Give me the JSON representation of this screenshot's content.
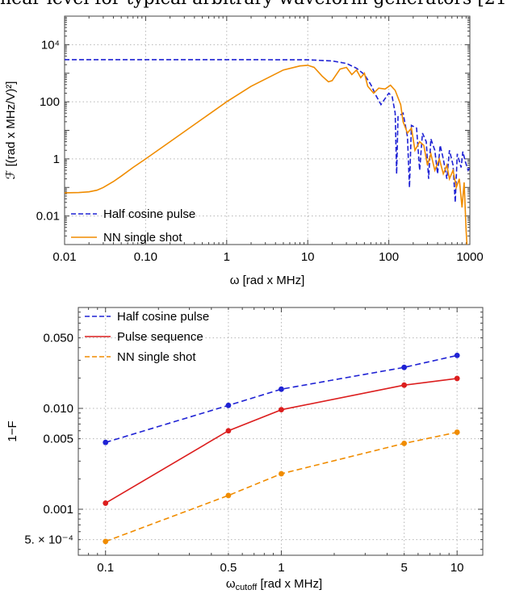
{
  "page": {
    "top_caption": "near level for typical arbitrary waveform generators [21"
  },
  "chart_data": [
    {
      "type": "line",
      "xscale": "log",
      "yscale": "log",
      "xlim": [
        0.01,
        1000
      ],
      "ylim": [
        0.001,
        100000
      ],
      "grid": true,
      "legend_position": "bottom-left",
      "xlabel": "ω [rad x MHz]",
      "ylabel": "ℱ [(rad x MHz/V)²]",
      "x_ticks": [
        {
          "value": 0.01,
          "label": "0.01"
        },
        {
          "value": 0.1,
          "label": "0.10"
        },
        {
          "value": 1,
          "label": "1"
        },
        {
          "value": 10,
          "label": "10"
        },
        {
          "value": 100,
          "label": "100"
        },
        {
          "value": 1000,
          "label": "1000"
        }
      ],
      "y_ticks": [
        {
          "value": 0.01,
          "label": "0.01"
        },
        {
          "value": 1,
          "label": "1"
        },
        {
          "value": 100,
          "label": "100"
        },
        {
          "value": 10000,
          "label": "10⁴"
        }
      ],
      "series": [
        {
          "name": "Half cosine pulse",
          "color": "#1f22d4",
          "dash": "dashed",
          "points": [
            [
              0.01,
              3000
            ],
            [
              1,
              3000
            ],
            [
              10,
              2950
            ],
            [
              20,
              2700
            ],
            [
              30,
              2200
            ],
            [
              40,
              1500
            ],
            [
              50,
              900
            ],
            [
              60,
              400
            ],
            [
              70,
              160
            ],
            [
              80,
              80
            ],
            [
              90,
              130
            ],
            [
              100,
              200
            ],
            [
              110,
              150
            ],
            [
              120,
              40
            ],
            [
              125,
              0.3
            ],
            [
              130,
              30
            ],
            [
              150,
              40
            ],
            [
              170,
              6
            ],
            [
              180,
              0.1
            ],
            [
              190,
              15
            ],
            [
              220,
              12
            ],
            [
              240,
              0.4
            ],
            [
              260,
              8
            ],
            [
              290,
              4
            ],
            [
              310,
              0.2
            ],
            [
              330,
              5
            ],
            [
              370,
              2
            ],
            [
              400,
              0.3
            ],
            [
              430,
              3
            ],
            [
              470,
              1
            ],
            [
              520,
              0.2
            ],
            [
              560,
              2
            ],
            [
              620,
              0.6
            ],
            [
              660,
              0.03
            ],
            [
              700,
              1.5
            ],
            [
              780,
              0.5
            ],
            [
              820,
              1.8
            ],
            [
              880,
              0.8
            ],
            [
              950,
              0.4
            ],
            [
              1000,
              0.5
            ]
          ]
        },
        {
          "name": "NN single shot",
          "color": "#f08c00",
          "dash": "solid",
          "points": [
            [
              0.01,
              0.065
            ],
            [
              0.015,
              0.066
            ],
            [
              0.02,
              0.07
            ],
            [
              0.025,
              0.08
            ],
            [
              0.03,
              0.1
            ],
            [
              0.04,
              0.16
            ],
            [
              0.05,
              0.25
            ],
            [
              0.07,
              0.5
            ],
            [
              0.1,
              1
            ],
            [
              0.2,
              4
            ],
            [
              0.5,
              25
            ],
            [
              1,
              100
            ],
            [
              2,
              350
            ],
            [
              5,
              1300
            ],
            [
              8,
              1800
            ],
            [
              10,
              1900
            ],
            [
              12,
              1600
            ],
            [
              15,
              800
            ],
            [
              18,
              500
            ],
            [
              20,
              550
            ],
            [
              25,
              1400
            ],
            [
              30,
              1600
            ],
            [
              35,
              900
            ],
            [
              40,
              1300
            ],
            [
              45,
              700
            ],
            [
              50,
              1000
            ],
            [
              55,
              350
            ],
            [
              65,
              200
            ],
            [
              75,
              300
            ],
            [
              90,
              280
            ],
            [
              105,
              380
            ],
            [
              120,
              250
            ],
            [
              140,
              80
            ],
            [
              150,
              20
            ],
            [
              170,
              8
            ],
            [
              190,
              12
            ],
            [
              210,
              2
            ],
            [
              240,
              4
            ],
            [
              270,
              3
            ],
            [
              300,
              0.6
            ],
            [
              330,
              1.5
            ],
            [
              370,
              0.4
            ],
            [
              420,
              1
            ],
            [
              470,
              0.3
            ],
            [
              520,
              0.6
            ],
            [
              560,
              0.2
            ],
            [
              620,
              0.4
            ],
            [
              680,
              0.1
            ],
            [
              740,
              0.2
            ],
            [
              800,
              0.02
            ],
            [
              850,
              0.15
            ],
            [
              900,
              0.003
            ],
            [
              920,
              0.001
            ]
          ]
        }
      ]
    },
    {
      "type": "line",
      "xscale": "log",
      "yscale": "log",
      "xlim": [
        0.07,
        14
      ],
      "ylim": [
        0.00035,
        0.1
      ],
      "grid": true,
      "legend_position": "top-left",
      "xlabel": "ω",
      "xlabel_sub": "cutoff",
      "xlabel_rest": " [rad x MHz]",
      "ylabel": "1−F",
      "x_ticks": [
        {
          "value": 0.1,
          "label": "0.1"
        },
        {
          "value": 0.5,
          "label": "0.5"
        },
        {
          "value": 1,
          "label": "1"
        },
        {
          "value": 5,
          "label": "5"
        },
        {
          "value": 10,
          "label": "10"
        }
      ],
      "y_ticks": [
        {
          "value": 0.0005,
          "label": "5. × 10⁻⁴"
        },
        {
          "value": 0.001,
          "label": "0.001"
        },
        {
          "value": 0.005,
          "label": "0.005"
        },
        {
          "value": 0.01,
          "label": "0.010"
        },
        {
          "value": 0.05,
          "label": "0.050"
        }
      ],
      "series": [
        {
          "name": "Half cosine pulse",
          "color": "#1f22d4",
          "dash": "dashed",
          "x": [
            0.1,
            0.5,
            1,
            5,
            10
          ],
          "values": [
            0.0046,
            0.0107,
            0.0155,
            0.0255,
            0.0335
          ]
        },
        {
          "name": "Pulse sequence",
          "color": "#dc1e1e",
          "dash": "solid",
          "x": [
            0.1,
            0.5,
            1,
            5,
            10
          ],
          "values": [
            0.00115,
            0.006,
            0.0097,
            0.017,
            0.0198
          ]
        },
        {
          "name": "NN single shot",
          "color": "#f08c00",
          "dash": "dashed",
          "x": [
            0.1,
            0.5,
            1,
            5,
            10
          ],
          "values": [
            0.00048,
            0.00137,
            0.00225,
            0.0045,
            0.0058
          ]
        }
      ]
    }
  ]
}
